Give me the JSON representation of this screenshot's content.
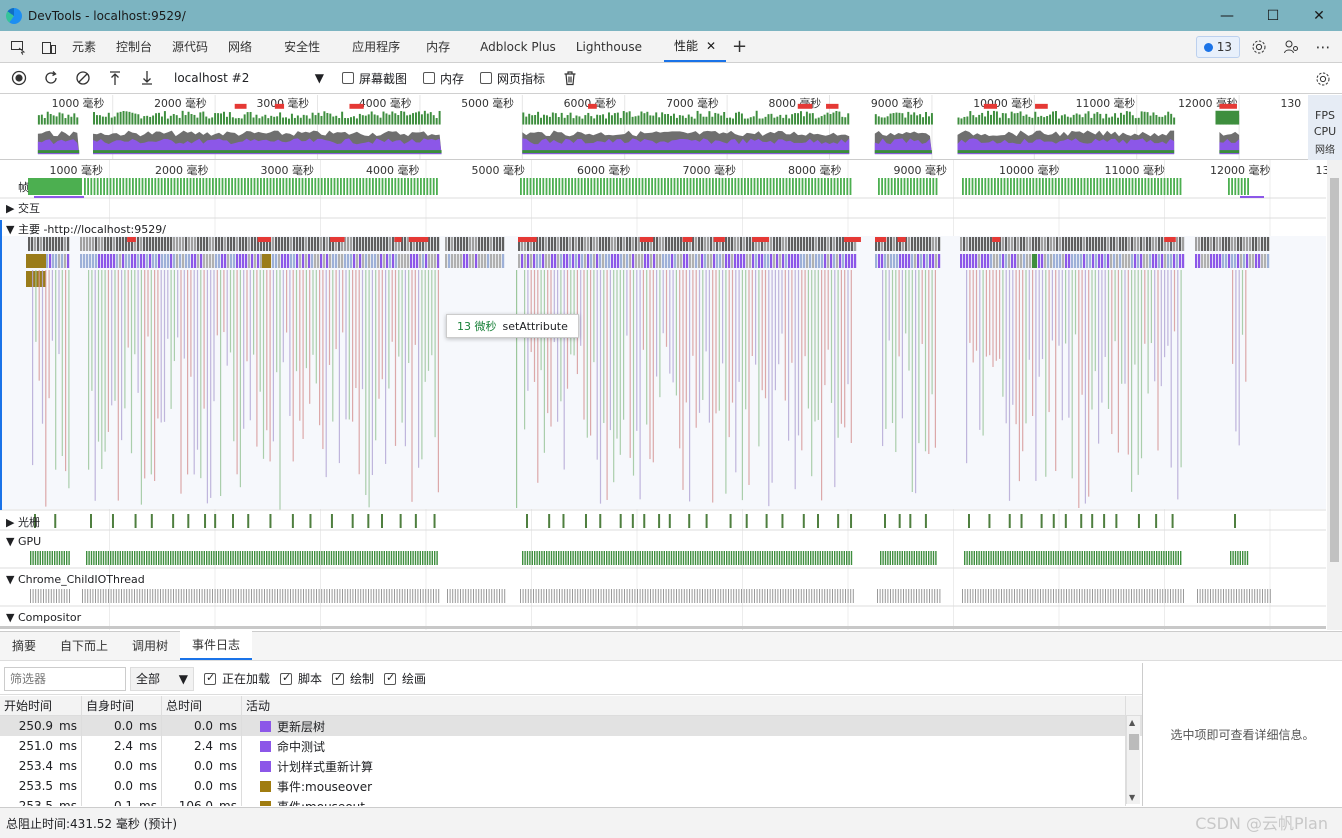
{
  "window": {
    "title": "DevTools - localhost:9529/"
  },
  "tabs": [
    {
      "label": "元素"
    },
    {
      "label": "控制台"
    },
    {
      "label": "源代码"
    },
    {
      "label": "网络"
    },
    {
      "label": "安全性"
    },
    {
      "label": "应用程序"
    },
    {
      "label": "内存"
    },
    {
      "label": "Adblock Plus"
    },
    {
      "label": "Lighthouse"
    },
    {
      "label": "性能",
      "active": true
    }
  ],
  "issues_count": "13",
  "toolbar": {
    "target": "localhost #2",
    "screenshots_label": "屏幕截图",
    "memory_label": "内存",
    "web_vitals_label": "网页指标"
  },
  "overview": {
    "ticks": [
      "1000 毫秒",
      "2000 毫秒",
      "3000 毫秒",
      "4000 毫秒",
      "5000 毫秒",
      "6000 毫秒",
      "7000 毫秒",
      "8000 毫秒",
      "9000 毫秒",
      "10000 毫秒",
      "11000 毫秒",
      "12000 毫秒",
      "130"
    ],
    "fps_label": "FPS",
    "cpu_label": "CPU",
    "net_label": "网络"
  },
  "tracks": {
    "frames": "帧",
    "interactions": "交互",
    "main": "主要 -http://localhost:9529/",
    "raster": "光栅",
    "gpu": "GPU",
    "child_io": "Chrome_ChildIOThread",
    "compositor": "Compositor"
  },
  "tooltip": {
    "duration": "13 微秒",
    "name": "setAttribute"
  },
  "bottom_tabs": [
    {
      "label": "摘要"
    },
    {
      "label": "自下而上"
    },
    {
      "label": "调用树"
    },
    {
      "label": "事件日志",
      "active": true
    }
  ],
  "filter": {
    "placeholder": "筛选器",
    "select_value": "全部",
    "loading_label": "正在加载",
    "script_label": "脚本",
    "render_label": "绘制",
    "paint_label": "绘画"
  },
  "table": {
    "headers": [
      "开始时间",
      "自身时间",
      "总时间",
      "活动"
    ],
    "unit": "ms",
    "rows": [
      {
        "start": "250.9",
        "self": "0.0",
        "total": "0.0",
        "activity": "更新层树",
        "color": "#8c57e8"
      },
      {
        "start": "251.0",
        "self": "2.4",
        "total": "2.4",
        "activity": "命中测试",
        "color": "#8c57e8"
      },
      {
        "start": "253.4",
        "self": "0.0",
        "total": "0.0",
        "activity": "计划样式重新计算",
        "color": "#8c57e8"
      },
      {
        "start": "253.5",
        "self": "0.0",
        "total": "0.0",
        "activity": "事件:mouseover",
        "color": "#a07c10"
      },
      {
        "start": "253.5",
        "self": "0.1",
        "total": "106.0",
        "activity": "事件:mouseout",
        "color": "#a07c10"
      }
    ]
  },
  "details_hint": "选中项即可查看详细信息。",
  "status": "总阻止时间:431.52 毫秒 (预计)",
  "watermark": "CSDN @云帆Plan",
  "colors": {
    "frame_green": "#4caf50",
    "cpu_purple": "#8c57e8",
    "long_task_red": "#e53935",
    "dark_bar": "#5f5f5f",
    "gpu_green": "#3e8e3e",
    "script_yellow": "#9a7c1a"
  }
}
